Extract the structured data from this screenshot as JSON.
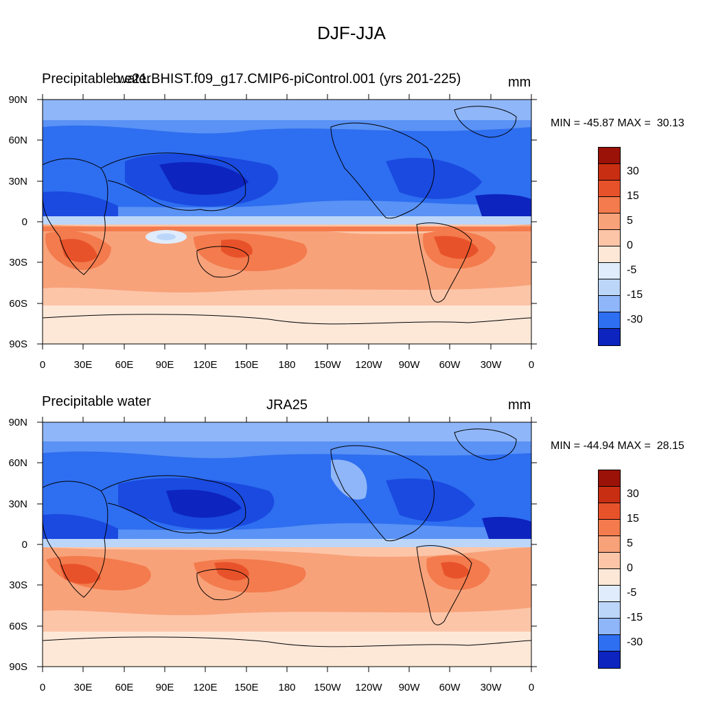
{
  "title": "DJF-JJA",
  "colors": {
    "levels": [
      "#0d0d99",
      "#0d24bf",
      "#1a4ae0",
      "#2e6ef0",
      "#5a92f5",
      "#8fb6f8",
      "#bcd6fa",
      "#e0ecfc",
      "#fde8d8",
      "#fcc5a8",
      "#f8a27a",
      "#f37b4d",
      "#e8522a",
      "#c82e12",
      "#9a1208",
      "#6e0000"
    ],
    "land_outline": "#000000"
  },
  "panels": [
    {
      "title_left": "Precipitable water",
      "title_center": "b.e21.BHIST.f09_g17.CMIP6-piControl.001 (yrs 201-225)",
      "title_right": "mm",
      "minmax": "MIN = -45.87 MAX =  30.13"
    },
    {
      "title_left": "Precipitable water",
      "title_center": "JRA25",
      "title_right": "mm",
      "minmax": "MIN = -44.94 MAX =  28.15"
    }
  ],
  "axes": {
    "lat_labels": [
      "90N",
      "60N",
      "30N",
      "0",
      "30S",
      "60S",
      "90S"
    ],
    "lon_labels": [
      "0",
      "30E",
      "60E",
      "90E",
      "120E",
      "150E",
      "180",
      "150W",
      "120W",
      "90W",
      "60W",
      "30W",
      "0"
    ]
  },
  "colorbar": {
    "labels": [
      "30",
      "15",
      "5",
      "0",
      "-5",
      "-15",
      "-30"
    ]
  }
}
